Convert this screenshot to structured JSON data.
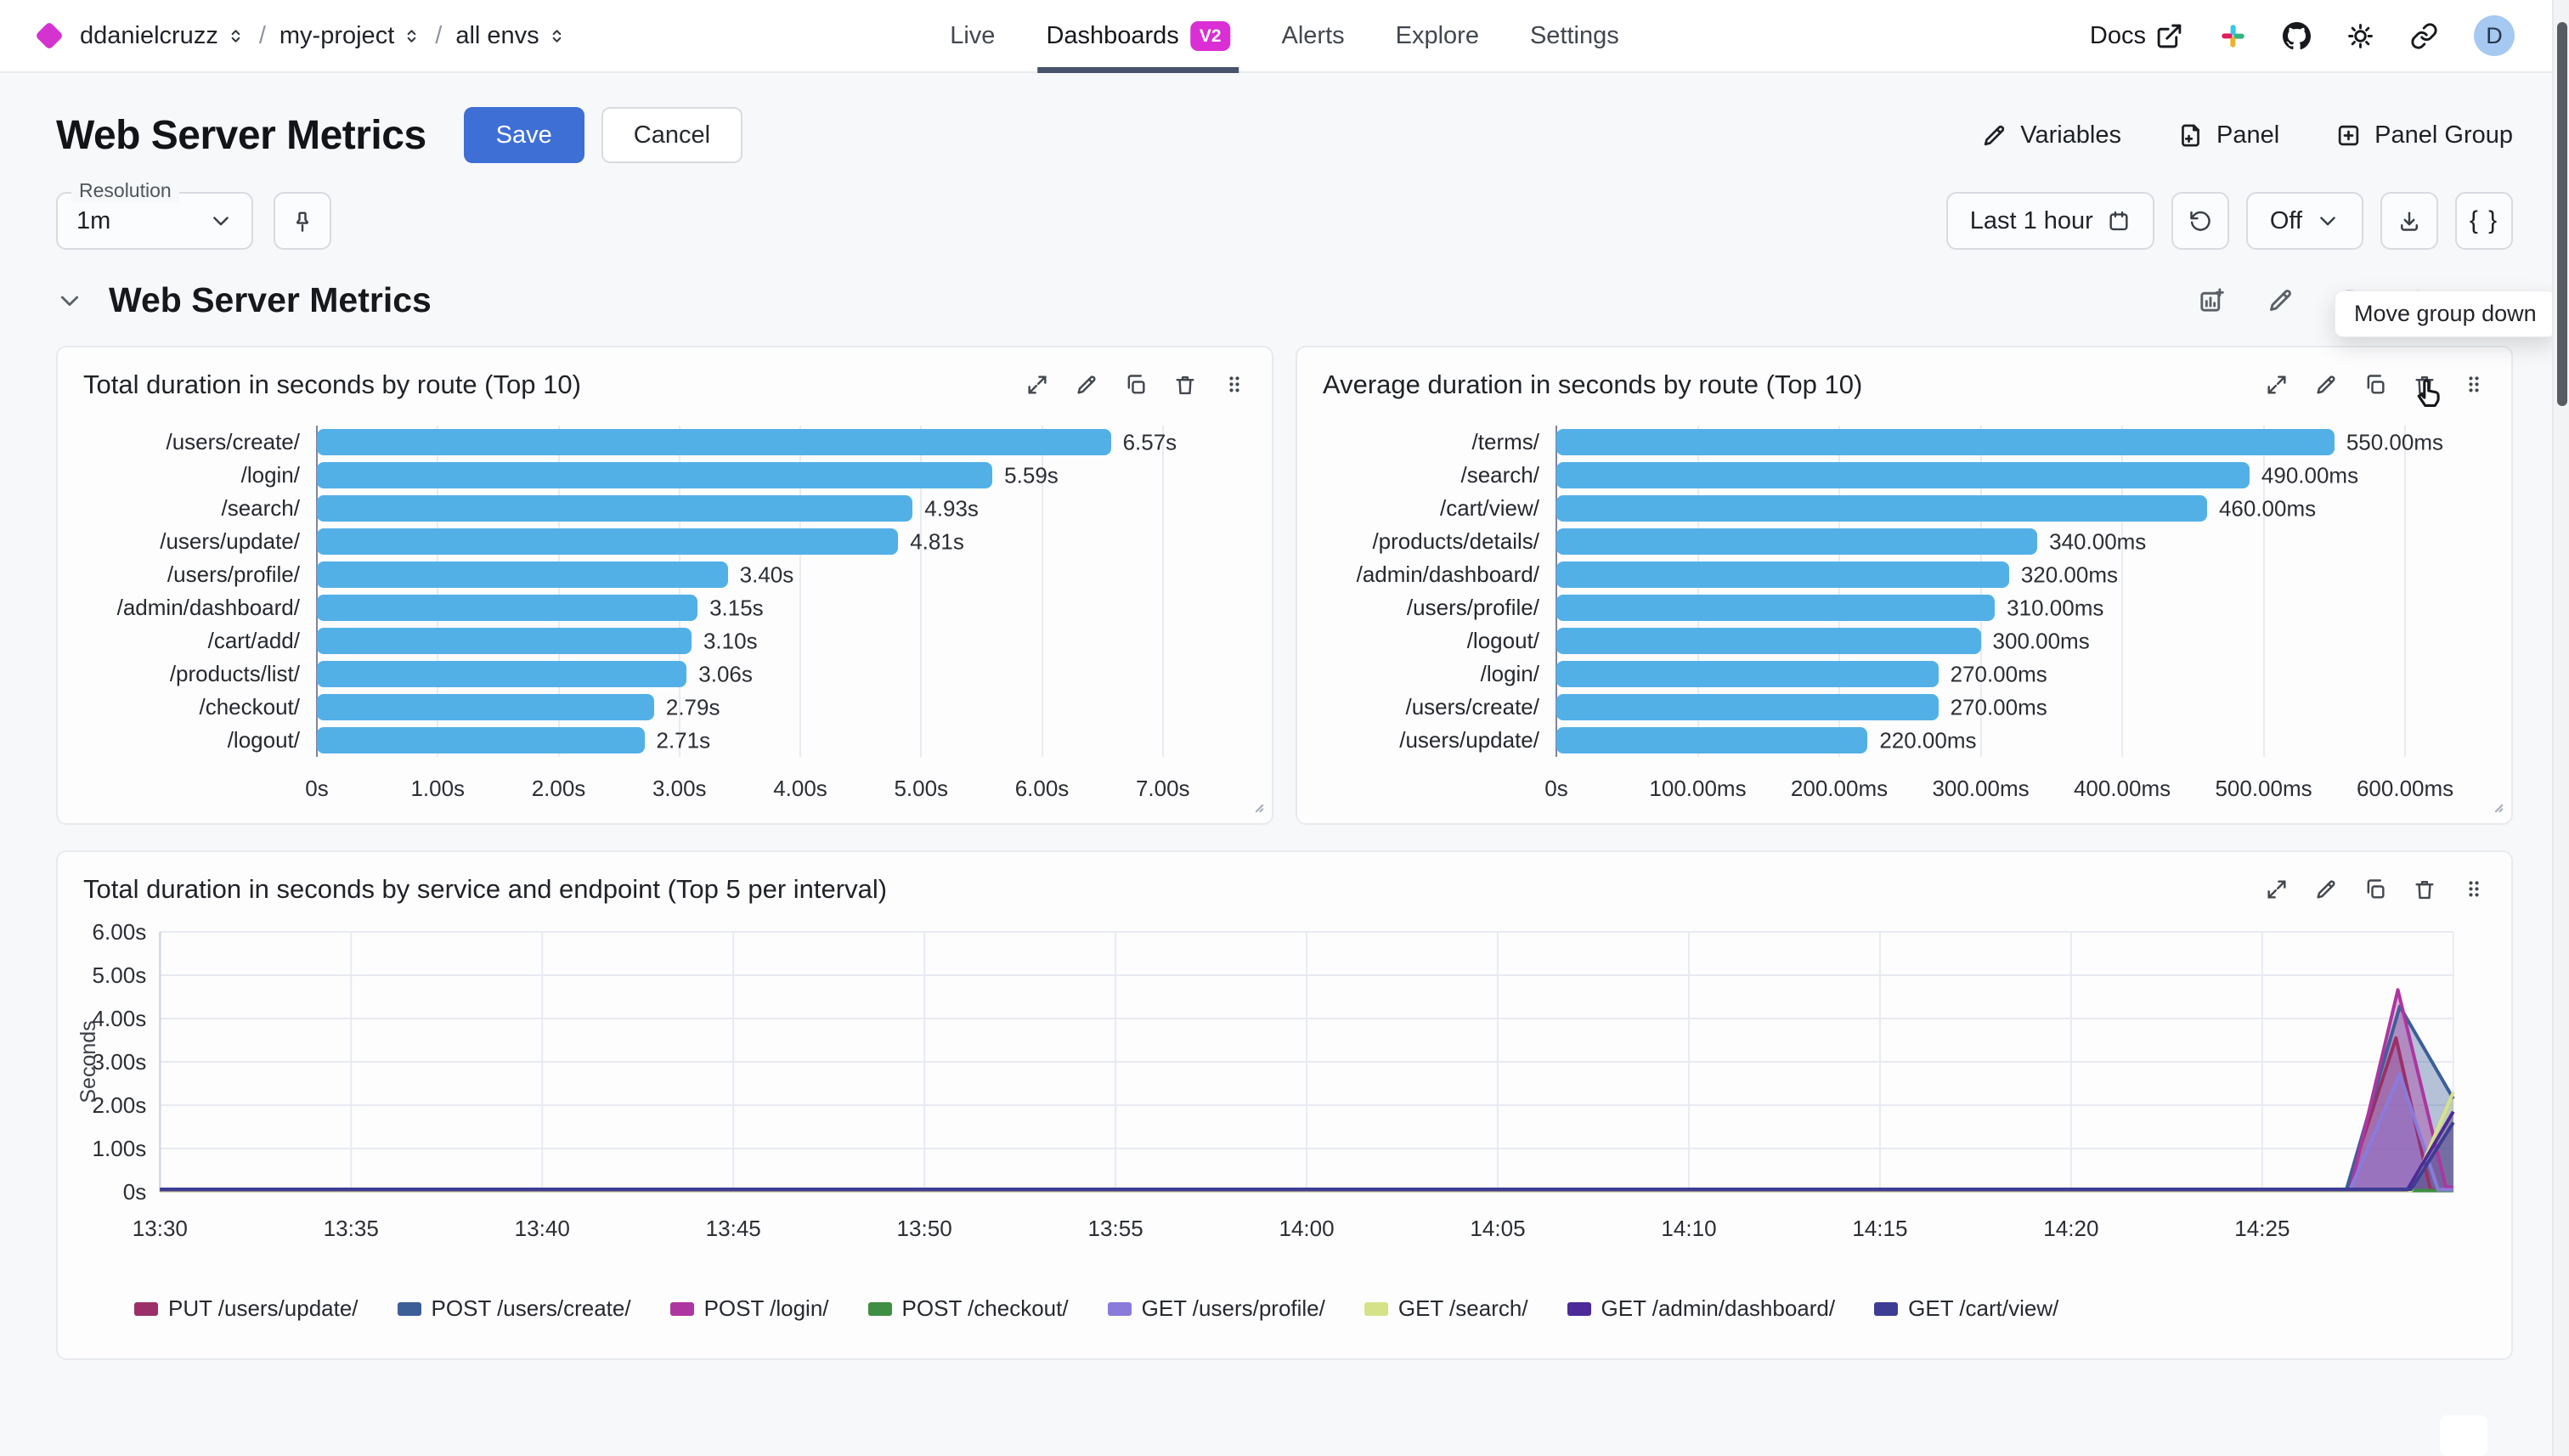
{
  "header": {
    "breadcrumb": [
      "ddanielcruzz",
      "my-project",
      "all envs"
    ],
    "tabs": [
      {
        "label": "Live",
        "active": false
      },
      {
        "label": "Dashboards",
        "badge": "V2",
        "active": true
      },
      {
        "label": "Alerts",
        "active": false
      },
      {
        "label": "Explore",
        "active": false
      },
      {
        "label": "Settings",
        "active": false
      }
    ],
    "docs_label": "Docs",
    "icon_names": [
      "external-link-icon",
      "slack-icon",
      "github-icon",
      "theme-sun-icon",
      "share-link-icon"
    ],
    "avatar_initial": "D"
  },
  "page": {
    "title": "Web Server Metrics",
    "save": "Save",
    "cancel": "Cancel",
    "variables": "Variables",
    "panel": "Panel",
    "panel_group": "Panel Group"
  },
  "controls": {
    "resolution_label": "Resolution",
    "resolution_value": "1m",
    "time_range": "Last 1 hour",
    "auto_refresh": "Off",
    "braces": "{ }"
  },
  "tooltip": {
    "text": "Move group down"
  },
  "group": {
    "title": "Web Server Metrics"
  },
  "colors": {
    "accent_blue": "#3e6fd5",
    "badge_magenta": "#d92fd4",
    "logo_magenta": "#d433cf",
    "bar_blue": "#53b0e7",
    "avatar_bg": "#a6c9f1",
    "active_tab_underline": "#46536b"
  },
  "chart_data": [
    {
      "type": "bar",
      "orientation": "horizontal",
      "title": "Total duration in seconds by route (Top 10)",
      "categories": [
        "/users/create/",
        "/login/",
        "/search/",
        "/users/update/",
        "/users/profile/",
        "/admin/dashboard/",
        "/cart/add/",
        "/products/list/",
        "/checkout/",
        "/logout/"
      ],
      "values": [
        6.57,
        5.59,
        4.93,
        4.81,
        3.4,
        3.15,
        3.1,
        3.06,
        2.79,
        2.71
      ],
      "value_labels": [
        "6.57s",
        "5.59s",
        "4.93s",
        "4.81s",
        "3.40s",
        "3.15s",
        "3.10s",
        "3.06s",
        "2.79s",
        "2.71s"
      ],
      "x_ticks": [
        "0s",
        "1.00s",
        "2.00s",
        "3.00s",
        "4.00s",
        "5.00s",
        "6.00s",
        "7.00s"
      ],
      "x_tick_values": [
        0,
        1,
        2,
        3,
        4,
        5,
        6,
        7
      ],
      "axis_max": 7.55,
      "bar_color": "#53b0e7",
      "xlabel": "",
      "ylabel": "",
      "grid": true
    },
    {
      "type": "bar",
      "orientation": "horizontal",
      "title": "Average duration in seconds by route (Top 10)",
      "categories": [
        "/terms/",
        "/search/",
        "/cart/view/",
        "/products/details/",
        "/admin/dashboard/",
        "/users/profile/",
        "/logout/",
        "/login/",
        "/users/create/",
        "/users/update/"
      ],
      "values": [
        550,
        490,
        460,
        340,
        320,
        310,
        300,
        270,
        270,
        220
      ],
      "value_labels": [
        "550.00ms",
        "490.00ms",
        "460.00ms",
        "340.00ms",
        "320.00ms",
        "310.00ms",
        "300.00ms",
        "270.00ms",
        "270.00ms",
        "220.00ms"
      ],
      "x_ticks": [
        "0s",
        "100.00ms",
        "200.00ms",
        "300.00ms",
        "400.00ms",
        "500.00ms",
        "600.00ms"
      ],
      "x_tick_values": [
        0,
        100,
        200,
        300,
        400,
        500,
        600
      ],
      "axis_max": 645,
      "bar_color": "#53b0e7",
      "xlabel": "",
      "ylabel": "",
      "grid": true
    },
    {
      "type": "area",
      "title": "Total duration in seconds by service and endpoint (Top 5 per interval)",
      "ylabel": "Seconds",
      "ylim": [
        0,
        6
      ],
      "y_ticks": [
        "0s",
        "1.00s",
        "2.00s",
        "3.00s",
        "4.00s",
        "5.00s",
        "6.00s"
      ],
      "y_tick_values": [
        0,
        1,
        2,
        3,
        4,
        5,
        6
      ],
      "x_ticks": [
        "13:30",
        "13:35",
        "13:40",
        "13:45",
        "13:50",
        "13:55",
        "14:00",
        "14:05",
        "14:10",
        "14:15",
        "14:20",
        "14:25"
      ],
      "x_tick_minutes": [
        0,
        5,
        10,
        15,
        20,
        25,
        30,
        35,
        40,
        45,
        50,
        55
      ],
      "x_range_minutes": [
        0,
        60
      ],
      "grid": true,
      "legend_position": "bottom",
      "series": [
        {
          "name": "PUT /users/update/",
          "color": "#9a3067",
          "points": [
            [
              0,
              0.04
            ],
            [
              57.2,
              0.04
            ],
            [
              58.5,
              3.55
            ],
            [
              59.4,
              0.05
            ],
            [
              60,
              0.05
            ]
          ]
        },
        {
          "name": "POST /users/create/",
          "color": "#3d5f98",
          "points": [
            [
              0,
              0.04
            ],
            [
              57.2,
              0.04
            ],
            [
              58.6,
              4.28
            ],
            [
              60,
              2.15
            ]
          ]
        },
        {
          "name": "POST /login/",
          "color": "#ad36a0",
          "points": [
            [
              0,
              0.03
            ],
            [
              57.3,
              0.03
            ],
            [
              58.55,
              4.66
            ],
            [
              59.8,
              0.12
            ],
            [
              60,
              0.1
            ]
          ]
        },
        {
          "name": "POST /checkout/",
          "color": "#3e8e43",
          "points": [
            [
              0,
              0.03
            ],
            [
              60,
              0.03
            ]
          ]
        },
        {
          "name": "GET /users/profile/",
          "color": "#8a7bdb",
          "points": [
            [
              0,
              0.05
            ],
            [
              57.3,
              0.05
            ],
            [
              58.6,
              2.72
            ],
            [
              59.6,
              0.05
            ],
            [
              60,
              0.05
            ]
          ]
        },
        {
          "name": "GET /search/",
          "color": "#d6e287",
          "points": [
            [
              0,
              0.03
            ],
            [
              58.9,
              0.03
            ],
            [
              60,
              2.3
            ]
          ]
        },
        {
          "name": "GET /admin/dashboard/",
          "color": "#4c2a99",
          "points": [
            [
              0,
              0.05
            ],
            [
              58.8,
              0.05
            ],
            [
              60,
              1.85
            ]
          ]
        },
        {
          "name": "GET /cart/view/",
          "color": "#3e3d94",
          "points": [
            [
              0,
              0.06
            ],
            [
              58.9,
              0.06
            ],
            [
              60,
              1.6
            ]
          ]
        }
      ]
    }
  ]
}
